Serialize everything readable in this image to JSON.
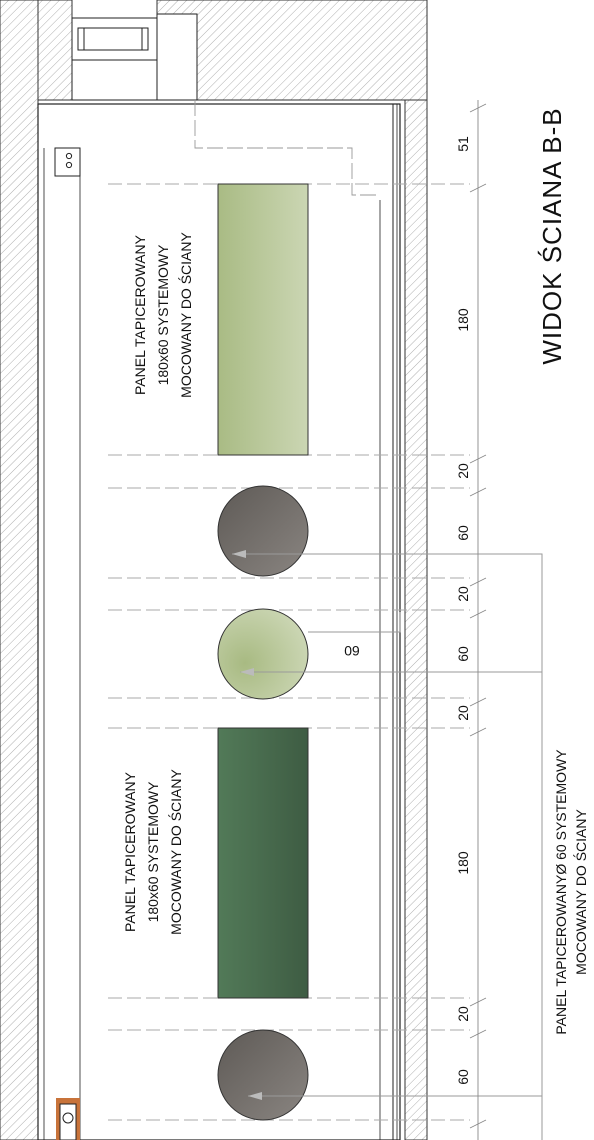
{
  "drawing": {
    "title": "WIDOK ŚCIANA  B-B",
    "colors": {
      "light_green": "#b9c797",
      "dark_green": "#4a6b4f",
      "gray": "#6f6b67",
      "line": "#222222",
      "dim_line": "#aaaaaa"
    },
    "panel_upper_label": [
      "PANEL TAPICEROWANY",
      "180x60 SYSTEMOWY",
      "MOCOWANY DO ŚCIANY"
    ],
    "panel_lower_label": [
      "PANEL TAPICEROWANY",
      "180x60 SYSTEMOWY",
      "MOCOWANY DO ŚCIANY"
    ],
    "round_panel_label": [
      "PANEL TAPICEROWANYØ 60 SYSTEMOWY",
      "MOCOWANY DO ŚCIANY"
    ],
    "round_dim_label": "60",
    "dimensions": [
      "51",
      "180",
      "20",
      "60",
      "20",
      "60",
      "20",
      "180",
      "20",
      "60"
    ]
  }
}
